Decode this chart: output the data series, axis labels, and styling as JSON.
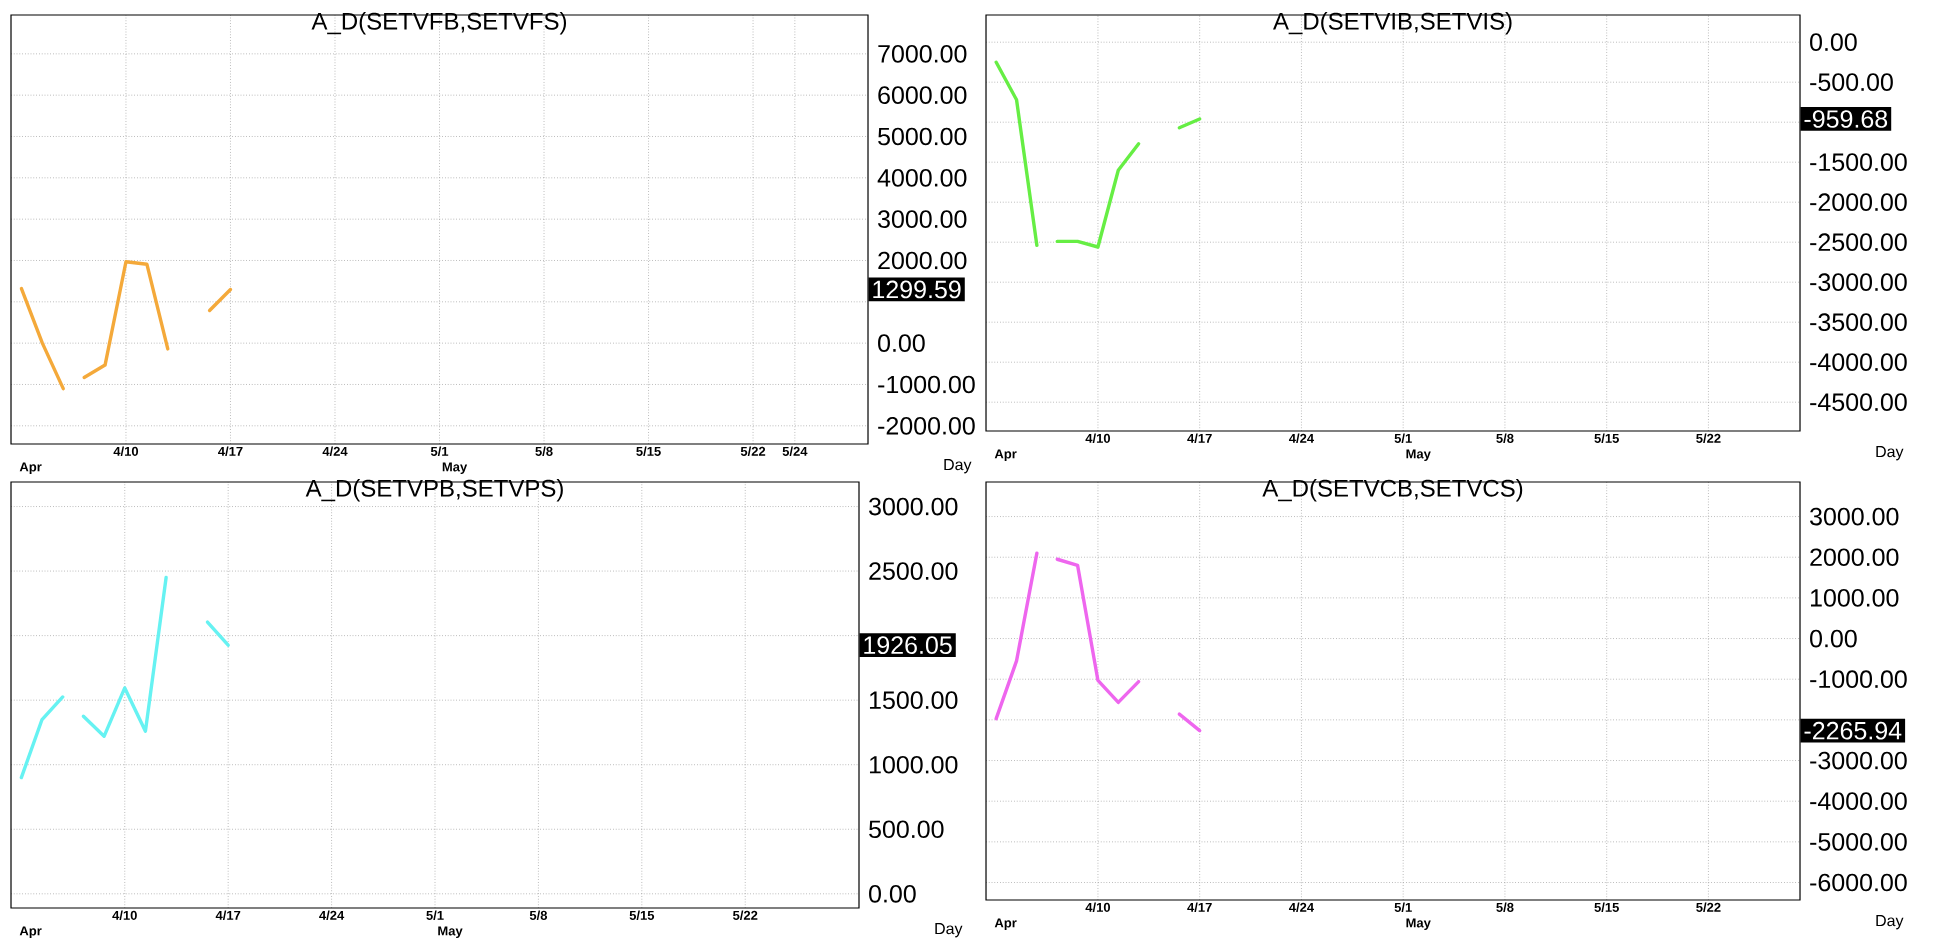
{
  "chart_data": [
    {
      "type": "line",
      "title": "A_D(SETVFB,SETVFS)",
      "xlabel": "Day",
      "grid": true,
      "categories": [
        null,
        null,
        null,
        null,
        null,
        "4/10",
        null,
        null,
        null,
        null,
        "4/17",
        null,
        null,
        null,
        null,
        "4/24",
        null,
        null,
        null,
        null,
        "5/1",
        null,
        null,
        null,
        null,
        "5/8",
        null,
        null,
        null,
        null,
        "5/15",
        null,
        null,
        null,
        null,
        "5/22",
        null,
        "5/24",
        null,
        null,
        null
      ],
      "ylim": [
        -2440,
        7940
      ],
      "yticks": [
        {
          "value": -2000,
          "label": "-2000.00"
        },
        {
          "value": -1000,
          "label": "-1000.00"
        },
        {
          "value": 0,
          "label": "0.00"
        },
        {
          "value": 1000,
          "label": null
        },
        {
          "value": 2000,
          "label": "2000.00"
        },
        {
          "value": 3000,
          "label": "3000.00"
        },
        {
          "value": 4000,
          "label": "4000.00"
        },
        {
          "value": 5000,
          "label": "5000.00"
        },
        {
          "value": 6000,
          "label": "6000.00"
        },
        {
          "value": 7000,
          "label": "7000.00"
        }
      ],
      "series": [
        {
          "color": "#f4a93a",
          "values": [
            1320,
            0,
            -1100,
            null,
            null,
            null,
            null,
            null,
            null,
            null,
            null,
            null,
            null,
            null,
            null,
            null,
            null,
            null,
            null,
            null,
            null,
            null,
            null,
            null,
            null,
            null,
            null,
            null,
            null,
            null,
            null,
            null,
            null,
            null,
            null,
            null,
            null,
            null,
            null,
            null,
            null
          ]
        },
        {
          "color": "#f4a93a",
          "values": [
            null,
            null,
            null,
            -830,
            -530,
            1970,
            1910,
            -140,
            null,
            790,
            1299.59,
            null,
            null,
            null,
            null,
            null,
            null,
            null,
            null,
            null,
            null,
            null,
            null,
            null,
            null,
            null,
            null,
            null,
            null,
            null,
            null,
            null,
            null,
            null,
            null,
            null,
            null,
            null,
            null,
            null,
            null
          ]
        }
      ],
      "annotations": [
        "1299.59",
        "Apr",
        "May"
      ]
    },
    {
      "type": "line",
      "title": "A_D(SETVIB,SETVIS)",
      "xlabel": "Day",
      "grid": true,
      "categories": [
        null,
        null,
        null,
        null,
        null,
        "4/10",
        null,
        null,
        null,
        null,
        "4/17",
        null,
        null,
        null,
        null,
        "4/24",
        null,
        null,
        null,
        null,
        "5/1",
        null,
        null,
        null,
        null,
        "5/8",
        null,
        null,
        null,
        null,
        "5/15",
        null,
        null,
        null,
        null,
        "5/22",
        null,
        null,
        null,
        null
      ],
      "ylim": [
        -4860,
        340
      ],
      "yticks": [
        {
          "value": -4500,
          "label": "-4500.00"
        },
        {
          "value": -4000,
          "label": "-4000.00"
        },
        {
          "value": -3500,
          "label": "-3500.00"
        },
        {
          "value": -3000,
          "label": "-3000.00"
        },
        {
          "value": -2500,
          "label": "-2500.00"
        },
        {
          "value": -2000,
          "label": "-2000.00"
        },
        {
          "value": -1500,
          "label": "-1500.00"
        },
        {
          "value": -1000,
          "label": null
        },
        {
          "value": -500,
          "label": "-500.00"
        },
        {
          "value": 0,
          "label": "0.00"
        }
      ],
      "series": [
        {
          "color": "#66ee44",
          "values": [
            -250,
            -720,
            -2540,
            null,
            null,
            null,
            null,
            null,
            null,
            null,
            null,
            null,
            null,
            null,
            null,
            null,
            null,
            null,
            null,
            null,
            null,
            null,
            null,
            null,
            null,
            null,
            null,
            null,
            null,
            null,
            null,
            null,
            null,
            null,
            null,
            null,
            null,
            null,
            null,
            null
          ]
        },
        {
          "color": "#66ee44",
          "values": [
            null,
            null,
            null,
            -2490,
            -2490,
            -2560,
            -1600,
            -1270,
            null,
            -1070,
            -959.68,
            null,
            null,
            null,
            null,
            null,
            null,
            null,
            null,
            null,
            null,
            null,
            null,
            null,
            null,
            null,
            null,
            null,
            null,
            null,
            null,
            null,
            null,
            null,
            null,
            null,
            null,
            null,
            null,
            null
          ]
        }
      ],
      "annotations": [
        "-959.68",
        "Apr",
        "May"
      ]
    },
    {
      "type": "line",
      "title": "A_D(SETVPB,SETVPS)",
      "xlabel": "Day",
      "grid": true,
      "categories": [
        null,
        null,
        null,
        null,
        null,
        "4/10",
        null,
        null,
        null,
        null,
        "4/17",
        null,
        null,
        null,
        null,
        "4/24",
        null,
        null,
        null,
        null,
        "5/1",
        null,
        null,
        null,
        null,
        "5/8",
        null,
        null,
        null,
        null,
        "5/15",
        null,
        null,
        null,
        null,
        "5/22",
        null,
        null,
        null,
        null,
        null
      ],
      "ylim": [
        -110,
        3190
      ],
      "yticks": [
        {
          "value": 0,
          "label": "0.00"
        },
        {
          "value": 500,
          "label": "500.00"
        },
        {
          "value": 1000,
          "label": "1000.00"
        },
        {
          "value": 1500,
          "label": "1500.00"
        },
        {
          "value": 2000,
          "label": null
        },
        {
          "value": 2500,
          "label": "2500.00"
        },
        {
          "value": 3000,
          "label": "3000.00"
        }
      ],
      "series": [
        {
          "color": "#66f2f2",
          "values": [
            900,
            1350,
            1525,
            null,
            null,
            null,
            null,
            null,
            null,
            null,
            null,
            null,
            null,
            null,
            null,
            null,
            null,
            null,
            null,
            null,
            null,
            null,
            null,
            null,
            null,
            null,
            null,
            null,
            null,
            null,
            null,
            null,
            null,
            null,
            null,
            null,
            null,
            null,
            null,
            null,
            null
          ]
        },
        {
          "color": "#66f2f2",
          "values": [
            null,
            null,
            null,
            1375,
            1220,
            1595,
            1260,
            2450,
            null,
            2105,
            1926.05,
            null,
            null,
            null,
            null,
            null,
            null,
            null,
            null,
            null,
            null,
            null,
            null,
            null,
            null,
            null,
            null,
            null,
            null,
            null,
            null,
            null,
            null,
            null,
            null,
            null,
            null,
            null,
            null,
            null,
            null
          ]
        }
      ],
      "annotations": [
        "1926.05",
        "Apr",
        "May"
      ]
    },
    {
      "type": "line",
      "title": "A_D(SETVCB,SETVCS)",
      "xlabel": "Day",
      "grid": true,
      "categories": [
        null,
        null,
        null,
        null,
        null,
        "4/10",
        null,
        null,
        null,
        null,
        "4/17",
        null,
        null,
        null,
        null,
        "4/24",
        null,
        null,
        null,
        null,
        "5/1",
        null,
        null,
        null,
        null,
        "5/8",
        null,
        null,
        null,
        null,
        "5/15",
        null,
        null,
        null,
        null,
        "5/22",
        null,
        null,
        null,
        null
      ],
      "ylim": [
        -6430,
        3850
      ],
      "yticks": [
        {
          "value": -6000,
          "label": "-6000.00"
        },
        {
          "value": -5000,
          "label": "-5000.00"
        },
        {
          "value": -4000,
          "label": "-4000.00"
        },
        {
          "value": -3000,
          "label": "-3000.00"
        },
        {
          "value": -2000,
          "label": null
        },
        {
          "value": -1000,
          "label": "-1000.00"
        },
        {
          "value": 0,
          "label": "0.00"
        },
        {
          "value": 1000,
          "label": "1000.00"
        },
        {
          "value": 2000,
          "label": "2000.00"
        },
        {
          "value": 3000,
          "label": "3000.00"
        }
      ],
      "series": [
        {
          "color": "#ee66ee",
          "values": [
            -1970,
            -550,
            2100,
            null,
            null,
            null,
            null,
            null,
            null,
            null,
            null,
            null,
            null,
            null,
            null,
            null,
            null,
            null,
            null,
            null,
            null,
            null,
            null,
            null,
            null,
            null,
            null,
            null,
            null,
            null,
            null,
            null,
            null,
            null,
            null,
            null,
            null,
            null,
            null,
            null
          ]
        },
        {
          "color": "#ee66ee",
          "values": [
            null,
            null,
            null,
            1950,
            1800,
            -1030,
            -1570,
            -1060,
            null,
            -1860,
            -2265.94,
            null,
            null,
            null,
            null,
            null,
            null,
            null,
            null,
            null,
            null,
            null,
            null,
            null,
            null,
            null,
            null,
            null,
            null,
            null,
            null,
            null,
            null,
            null,
            null,
            null,
            null,
            null,
            null,
            null
          ]
        }
      ],
      "annotations": [
        "-2265.94",
        "Apr",
        "May"
      ]
    }
  ]
}
